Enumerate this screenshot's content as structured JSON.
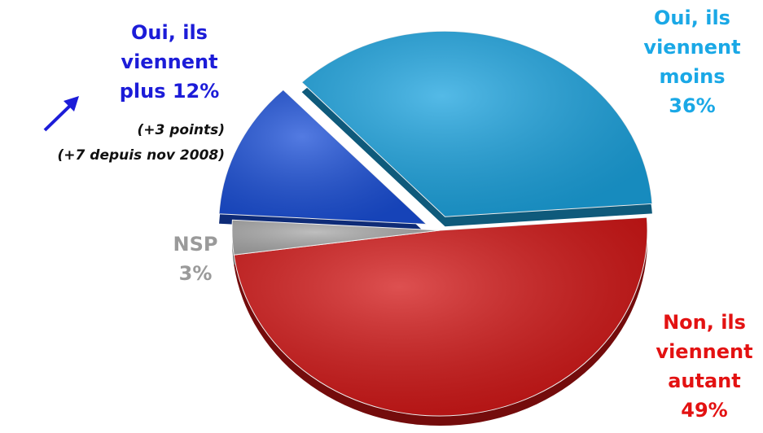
{
  "chart_data": {
    "type": "pie",
    "slices": [
      {
        "label": "Oui, ils viennent moins",
        "value": 36,
        "value_label": "36%",
        "color": "#1ba3df",
        "label_color": "#1aa8e6",
        "exploded": true
      },
      {
        "label": "Non, ils viennent autant",
        "value": 49,
        "value_label": "49%",
        "color": "#d21616",
        "label_color": "#e31212",
        "exploded": false
      },
      {
        "label": "NSP",
        "value": 3,
        "value_label": "3%",
        "color": "#a9a9a9",
        "label_color": "#9a9a9a",
        "exploded": false
      },
      {
        "label": "Oui, ils viennent plus",
        "value": 12,
        "value_label": "12%",
        "color": "#1a4fd8",
        "label_color": "#1c1cd8",
        "exploded": true
      }
    ],
    "annotations": [
      "(+3 points)",
      "(+7 depuis nov 2008)"
    ]
  }
}
